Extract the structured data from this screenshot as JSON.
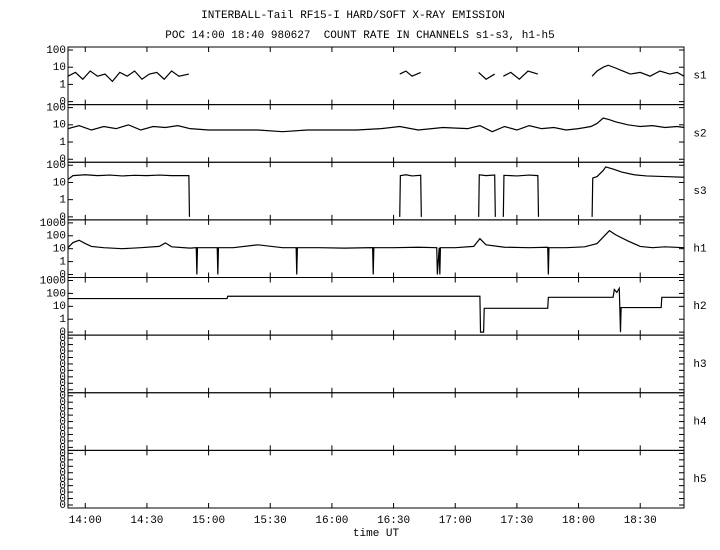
{
  "chart_data": [
    {
      "type": "line",
      "title": "INTERBALL-Tail RF15-I HARD/SOFT X-RAY EMISSION",
      "subtitle": "POC 14:00 18:40 980627  COUNT RATE IN CHANNELS s1-s3, h1-h5",
      "label": "s1",
      "yscale": "log",
      "ylim": [
        0.1,
        100
      ],
      "xlim": [
        13.86,
        18.855
      ],
      "color": "#000000",
      "yticks": [
        {
          "value": 0.1,
          "label": "0"
        },
        1,
        10,
        100
      ],
      "x": [
        13.86,
        13.92,
        13.98,
        14.04,
        14.1,
        14.16,
        14.22,
        14.28,
        14.34,
        14.4,
        14.46,
        14.52,
        14.58,
        14.64,
        14.7,
        14.76,
        14.84,
        14.85,
        16.55,
        16.6,
        16.65,
        16.72,
        16.8,
        17.19,
        17.25,
        17.32,
        17.36,
        17.39,
        17.45,
        17.52,
        17.59,
        17.67,
        17.9,
        18.11,
        18.15,
        18.2,
        18.24,
        18.3,
        18.36,
        18.42,
        18.5,
        18.58,
        18.66,
        18.74,
        18.8,
        18.855
      ],
      "values": [
        3,
        5,
        2,
        6,
        3,
        4,
        1.5,
        5,
        3,
        6,
        2,
        4,
        5,
        2,
        6,
        3,
        4,
        null,
        4,
        6,
        3,
        5,
        null,
        5,
        2,
        4,
        null,
        3,
        5,
        2,
        6,
        4,
        null,
        3,
        6,
        10,
        13,
        9,
        6,
        4,
        5,
        3,
        6,
        4,
        5,
        3
      ]
    },
    {
      "type": "line",
      "label": "s2",
      "yscale": "log",
      "ylim": [
        0.1,
        100
      ],
      "xlim": [
        13.86,
        18.855
      ],
      "color": "#000000",
      "yticks": [
        {
          "value": 0.1,
          "label": "0"
        },
        1,
        10,
        100
      ],
      "x": [
        13.86,
        13.95,
        14.05,
        14.15,
        14.25,
        14.35,
        14.45,
        14.55,
        14.65,
        14.75,
        14.85,
        15.0,
        15.2,
        15.4,
        15.6,
        15.8,
        16.0,
        16.2,
        16.4,
        16.55,
        16.7,
        16.9,
        17.1,
        17.2,
        17.3,
        17.4,
        17.5,
        17.6,
        17.7,
        17.8,
        17.9,
        18.0,
        18.1,
        18.15,
        18.2,
        18.25,
        18.3,
        18.4,
        18.5,
        18.6,
        18.7,
        18.8,
        18.855
      ],
      "values": [
        6,
        9,
        5,
        8,
        6,
        10,
        5,
        8,
        7,
        9,
        6,
        5,
        5,
        5,
        4,
        5,
        5,
        5,
        6,
        8,
        5,
        7,
        6,
        9,
        4,
        8,
        5,
        9,
        6,
        7,
        5,
        6,
        8,
        12,
        25,
        20,
        15,
        10,
        8,
        9,
        7,
        8,
        7
      ]
    },
    {
      "type": "line",
      "label": "s3",
      "yscale": "log",
      "ylim": [
        0.1,
        100
      ],
      "xlim": [
        13.86,
        18.855
      ],
      "color": "#000000",
      "yticks": [
        {
          "value": 0.1,
          "label": "0"
        },
        1,
        10,
        100
      ],
      "x": [
        13.86,
        13.9,
        14.0,
        14.1,
        14.2,
        14.3,
        14.4,
        14.5,
        14.6,
        14.7,
        14.84,
        14.845,
        14.9,
        16.55,
        16.555,
        16.6,
        16.65,
        16.72,
        16.725,
        16.8,
        17.19,
        17.195,
        17.25,
        17.32,
        17.325,
        17.36,
        17.39,
        17.395,
        17.5,
        17.6,
        17.67,
        17.675,
        17.9,
        18.11,
        18.115,
        18.15,
        18.2,
        18.22,
        18.28,
        18.35,
        18.45,
        18.55,
        18.7,
        18.855
      ],
      "values": [
        15,
        25,
        28,
        25,
        27,
        24,
        26,
        25,
        27,
        25,
        25,
        0.1,
        null,
        0.1,
        25,
        28,
        24,
        26,
        0.1,
        null,
        0.1,
        28,
        25,
        27,
        0.1,
        null,
        0.1,
        26,
        24,
        27,
        25,
        0.1,
        null,
        0.1,
        18,
        22,
        50,
        80,
        60,
        40,
        28,
        24,
        22,
        20
      ]
    },
    {
      "type": "line",
      "label": "h1",
      "yscale": "log",
      "ylim": [
        0.1,
        1000
      ],
      "xlim": [
        13.86,
        18.855
      ],
      "color": "#000000",
      "yticks": [
        {
          "value": 0.1,
          "label": "0"
        },
        1,
        10,
        100,
        1000
      ],
      "x": [
        13.86,
        13.9,
        13.95,
        14.0,
        14.05,
        14.15,
        14.3,
        14.45,
        14.6,
        14.65,
        14.7,
        14.85,
        14.9,
        14.905,
        14.91,
        15.0,
        15.07,
        15.075,
        15.08,
        15.2,
        15.4,
        15.6,
        15.71,
        15.715,
        15.72,
        15.9,
        16.1,
        16.33,
        16.335,
        16.34,
        16.5,
        16.7,
        16.85,
        16.855,
        16.87,
        16.875,
        16.88,
        17.0,
        17.15,
        17.2,
        17.25,
        17.4,
        17.6,
        17.75,
        17.755,
        17.76,
        17.9,
        18.05,
        18.15,
        18.2,
        18.25,
        18.3,
        18.4,
        18.5,
        18.6,
        18.7,
        18.855
      ],
      "values": [
        12,
        30,
        45,
        25,
        15,
        12,
        10,
        12,
        15,
        28,
        14,
        11,
        12,
        0.1,
        12,
        12,
        12,
        0.1,
        12,
        12,
        20,
        12,
        12,
        0.1,
        12,
        12,
        11,
        12,
        0.1,
        12,
        12,
        13,
        12,
        0.1,
        12,
        0.1,
        12,
        12,
        15,
        60,
        20,
        13,
        12,
        13,
        0.1,
        12,
        12,
        14,
        25,
        80,
        250,
        120,
        40,
        15,
        12,
        14,
        12
      ]
    },
    {
      "type": "line",
      "label": "h2",
      "yscale": "log",
      "ylim": [
        0.1,
        1000
      ],
      "xlim": [
        13.86,
        18.855
      ],
      "color": "#000000",
      "yticks": [
        {
          "value": 0.1,
          "label": "0"
        },
        1,
        10,
        100,
        1000
      ],
      "x": [
        13.86,
        15.15,
        15.155,
        17.2,
        17.205,
        17.23,
        17.235,
        17.75,
        17.755,
        18.28,
        18.29,
        18.31,
        18.33,
        18.34,
        18.345,
        18.4,
        18.67,
        18.675,
        18.855
      ],
      "values": [
        40,
        40,
        60,
        60,
        0.1,
        0.1,
        7,
        7,
        50,
        50,
        200,
        120,
        250,
        0.1,
        8,
        8,
        8,
        50,
        50
      ]
    },
    {
      "type": "empty",
      "label": "h3",
      "yscale": "linear",
      "ylim": [
        0,
        0.4
      ],
      "xlim": [
        13.86,
        18.855
      ],
      "yticks": [
        0,
        {
          "value": 0.05,
          "label": "0"
        },
        {
          "value": 0.1,
          "label": "0"
        },
        {
          "value": 0.15,
          "label": "0"
        },
        {
          "value": 0.2,
          "label": "0"
        },
        {
          "value": 0.25,
          "label": "0"
        },
        {
          "value": 0.3,
          "label": "0"
        },
        {
          "value": 0.35,
          "label": "0"
        },
        {
          "value": 0.4,
          "label": "0"
        }
      ]
    },
    {
      "type": "empty",
      "label": "h4",
      "yscale": "linear",
      "ylim": [
        0,
        0.4
      ],
      "xlim": [
        13.86,
        18.855
      ],
      "yticks": [
        0,
        {
          "value": 0.05,
          "label": "0"
        },
        {
          "value": 0.1,
          "label": "0"
        },
        {
          "value": 0.15,
          "label": "0"
        },
        {
          "value": 0.2,
          "label": "0"
        },
        {
          "value": 0.25,
          "label": "0"
        },
        {
          "value": 0.3,
          "label": "0"
        },
        {
          "value": 0.35,
          "label": "0"
        },
        {
          "value": 0.4,
          "label": "0"
        }
      ]
    },
    {
      "type": "empty",
      "label": "h5",
      "yscale": "linear",
      "ylim": [
        0,
        0.4
      ],
      "xlim": [
        13.86,
        18.855
      ],
      "xlabel": "time UT",
      "yticks": [
        0,
        {
          "value": 0.05,
          "label": "0"
        },
        {
          "value": 0.1,
          "label": "0"
        },
        {
          "value": 0.15,
          "label": "0"
        },
        {
          "value": 0.2,
          "label": "0"
        },
        {
          "value": 0.25,
          "label": "0"
        },
        {
          "value": 0.3,
          "label": "0"
        },
        {
          "value": 0.35,
          "label": "0"
        },
        {
          "value": 0.4,
          "label": "0"
        }
      ],
      "xticks": [
        {
          "value": 14,
          "label": "14:00"
        },
        {
          "value": 14.5,
          "label": "14:30"
        },
        {
          "value": 15,
          "label": "15:00"
        },
        {
          "value": 15.5,
          "label": "15:30"
        },
        {
          "value": 16,
          "label": "16:00"
        },
        {
          "value": 16.5,
          "label": "16:30"
        },
        {
          "value": 17,
          "label": "17:00"
        },
        {
          "value": 17.5,
          "label": "17:30"
        },
        {
          "value": 18,
          "label": "18:00"
        },
        {
          "value": 18.5,
          "label": "18:30"
        }
      ]
    }
  ]
}
